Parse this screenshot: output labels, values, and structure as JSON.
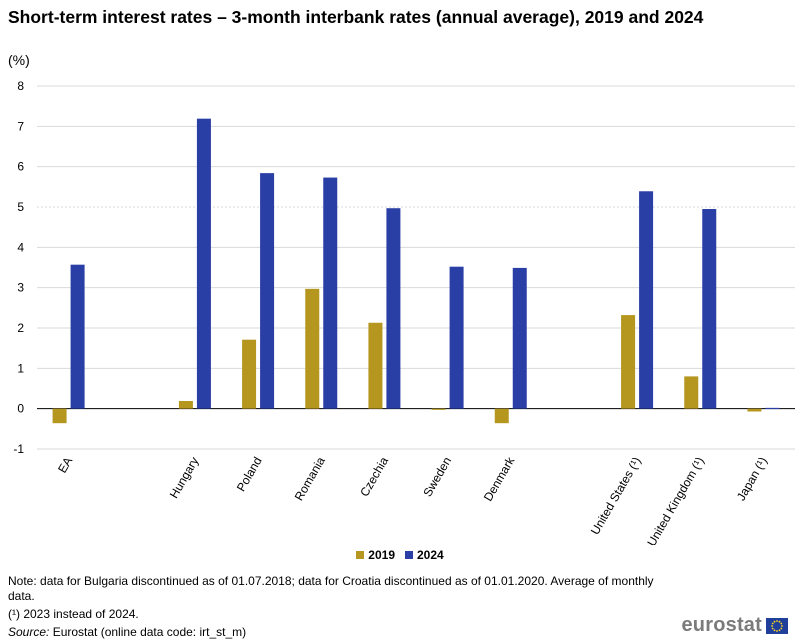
{
  "title": "Short-term interest rates – 3-month interbank rates (annual average), 2019 and 2024",
  "unit_label": "(%)",
  "chart_data": {
    "type": "bar",
    "categories": [
      "EA",
      "",
      "Hungary",
      "Poland",
      "Romania",
      "Czechia",
      "Sweden",
      "Denmark",
      "",
      "United States (¹)",
      "United Kingdom (¹)",
      "Japan (¹)"
    ],
    "series": [
      {
        "name": "2019",
        "color": "#b5961f",
        "values": [
          -0.36,
          null,
          0.19,
          1.71,
          2.97,
          2.13,
          -0.02,
          -0.36,
          null,
          2.32,
          0.8,
          -0.07
        ]
      },
      {
        "name": "2024",
        "color": "#2a3fa6",
        "values": [
          3.57,
          null,
          7.19,
          5.84,
          5.73,
          4.97,
          3.52,
          3.49,
          null,
          5.39,
          4.95,
          0.02
        ]
      }
    ],
    "ylim": [
      -1,
      8
    ],
    "yticks": [
      -1,
      0,
      1,
      2,
      3,
      4,
      5,
      6,
      7,
      8
    ],
    "ylabel": "(%)",
    "grid": true,
    "legend_position": "bottom"
  },
  "notes": {
    "note": "Note: data for Bulgaria discontinued as of 01.07.2018; data for Croatia discontinued as of 01.01.2020. Average of monthly data.",
    "footnote": "(¹) 2023 instead of 2024.",
    "source_label": "Source:",
    "source_text": " Eurostat (online data code: irt_st_m)"
  },
  "logo_text": "eurostat"
}
